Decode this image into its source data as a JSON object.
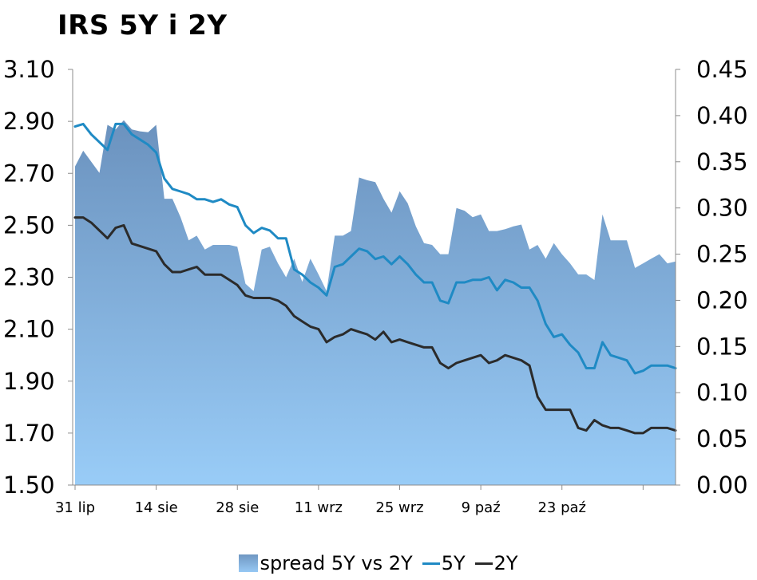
{
  "chart_data": {
    "type": "line",
    "title": "IRS 5Y i 2Y",
    "x_tick_labels": [
      "31 lip",
      "14 sie",
      "28 sie",
      "11 wrz",
      "25 wrz",
      "9 paź",
      "23 paź"
    ],
    "y_left": {
      "ylim": [
        1.5,
        3.1
      ],
      "ticks": [
        "3.10",
        "2.90",
        "2.70",
        "2.50",
        "2.30",
        "2.10",
        "1.90",
        "1.70",
        "1.50"
      ]
    },
    "y_right": {
      "ylim": [
        0.0,
        0.45
      ],
      "ticks": [
        "0.45",
        "0.40",
        "0.35",
        "0.30",
        "0.25",
        "0.20",
        "0.15",
        "0.10",
        "0.05",
        "0.00"
      ]
    },
    "grid": false,
    "legend_position": "bottom",
    "series": [
      {
        "name": "spread 5Y vs 2Y",
        "type": "area",
        "axis": "right",
        "color_top": "#6f97c2",
        "color_bottom": "#97c8f4",
        "values": [
          0.345,
          0.362,
          0.35,
          0.338,
          0.39,
          0.385,
          0.395,
          0.385,
          0.383,
          0.382,
          0.39,
          0.31,
          0.31,
          0.29,
          0.265,
          0.27,
          0.255,
          0.26,
          0.26,
          0.26,
          0.258,
          0.218,
          0.21,
          0.255,
          0.258,
          0.24,
          0.225,
          0.245,
          0.22,
          0.245,
          0.228,
          0.21,
          0.27,
          0.27,
          0.275,
          0.333,
          0.33,
          0.328,
          0.31,
          0.295,
          0.318,
          0.305,
          0.28,
          0.262,
          0.26,
          0.25,
          0.25,
          0.3,
          0.297,
          0.29,
          0.293,
          0.275,
          0.275,
          0.277,
          0.28,
          0.282,
          0.255,
          0.26,
          0.245,
          0.262,
          0.25,
          0.24,
          0.228,
          0.228,
          0.222,
          0.293,
          0.265,
          0.265,
          0.265,
          0.235,
          0.24,
          0.245,
          0.25,
          0.24,
          0.242
        ]
      },
      {
        "name": "5Y",
        "type": "line",
        "axis": "left",
        "color": "#1f8ac4",
        "values": [
          2.88,
          2.89,
          2.85,
          2.82,
          2.79,
          2.89,
          2.89,
          2.85,
          2.83,
          2.81,
          2.78,
          2.68,
          2.64,
          2.63,
          2.62,
          2.6,
          2.6,
          2.59,
          2.6,
          2.58,
          2.57,
          2.5,
          2.47,
          2.49,
          2.48,
          2.45,
          2.45,
          2.33,
          2.31,
          2.28,
          2.26,
          2.23,
          2.34,
          2.35,
          2.38,
          2.41,
          2.4,
          2.37,
          2.38,
          2.35,
          2.38,
          2.35,
          2.31,
          2.28,
          2.28,
          2.21,
          2.2,
          2.28,
          2.28,
          2.29,
          2.29,
          2.3,
          2.25,
          2.29,
          2.28,
          2.26,
          2.26,
          2.21,
          2.12,
          2.07,
          2.08,
          2.04,
          2.01,
          1.95,
          1.95,
          2.05,
          2.0,
          1.99,
          1.98,
          1.93,
          1.94,
          1.96,
          1.96,
          1.96,
          1.95
        ]
      },
      {
        "name": "2Y",
        "type": "line",
        "axis": "left",
        "color": "#2b2b2b",
        "values": [
          2.53,
          2.53,
          2.51,
          2.48,
          2.45,
          2.49,
          2.5,
          2.43,
          2.42,
          2.41,
          2.4,
          2.35,
          2.32,
          2.32,
          2.33,
          2.34,
          2.31,
          2.31,
          2.31,
          2.29,
          2.27,
          2.23,
          2.22,
          2.22,
          2.22,
          2.21,
          2.19,
          2.15,
          2.13,
          2.11,
          2.1,
          2.05,
          2.07,
          2.08,
          2.1,
          2.09,
          2.08,
          2.06,
          2.09,
          2.05,
          2.06,
          2.05,
          2.04,
          2.03,
          2.03,
          1.97,
          1.95,
          1.97,
          1.98,
          1.99,
          2.0,
          1.97,
          1.98,
          2.0,
          1.99,
          1.98,
          1.96,
          1.84,
          1.79,
          1.79,
          1.79,
          1.79,
          1.72,
          1.71,
          1.75,
          1.73,
          1.72,
          1.72,
          1.71,
          1.7,
          1.7,
          1.72,
          1.72,
          1.72,
          1.71
        ]
      }
    ]
  }
}
